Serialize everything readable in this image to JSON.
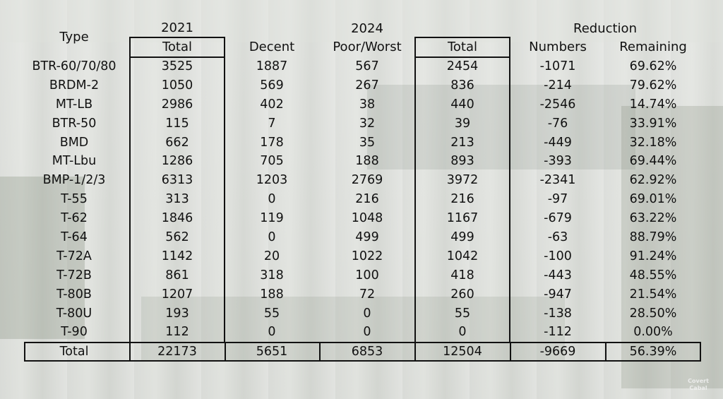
{
  "headers": {
    "type": "Type",
    "year2021": "2021",
    "year2024": "2024",
    "reduction": "Reduction",
    "total2021": "Total",
    "decent": "Decent",
    "poor_worst": "Poor/Worst",
    "total2024": "Total",
    "numbers": "Numbers",
    "remaining": "Remaining"
  },
  "rows": [
    {
      "type": "BTR-60/70/80",
      "total2021": "3525",
      "decent": "1887",
      "poor": "567",
      "total2024": "2454",
      "numbers": "-1071",
      "remaining": "69.62%"
    },
    {
      "type": "BRDM-2",
      "total2021": "1050",
      "decent": "569",
      "poor": "267",
      "total2024": "836",
      "numbers": "-214",
      "remaining": "79.62%"
    },
    {
      "type": "MT-LB",
      "total2021": "2986",
      "decent": "402",
      "poor": "38",
      "total2024": "440",
      "numbers": "-2546",
      "remaining": "14.74%"
    },
    {
      "type": "BTR-50",
      "total2021": "115",
      "decent": "7",
      "poor": "32",
      "total2024": "39",
      "numbers": "-76",
      "remaining": "33.91%"
    },
    {
      "type": "BMD",
      "total2021": "662",
      "decent": "178",
      "poor": "35",
      "total2024": "213",
      "numbers": "-449",
      "remaining": "32.18%"
    },
    {
      "type": "MT-Lbu",
      "total2021": "1286",
      "decent": "705",
      "poor": "188",
      "total2024": "893",
      "numbers": "-393",
      "remaining": "69.44%"
    },
    {
      "type": "BMP-1/2/3",
      "total2021": "6313",
      "decent": "1203",
      "poor": "2769",
      "total2024": "3972",
      "numbers": "-2341",
      "remaining": "62.92%"
    },
    {
      "type": "T-55",
      "total2021": "313",
      "decent": "0",
      "poor": "216",
      "total2024": "216",
      "numbers": "-97",
      "remaining": "69.01%"
    },
    {
      "type": "T-62",
      "total2021": "1846",
      "decent": "119",
      "poor": "1048",
      "total2024": "1167",
      "numbers": "-679",
      "remaining": "63.22%"
    },
    {
      "type": "T-64",
      "total2021": "562",
      "decent": "0",
      "poor": "499",
      "total2024": "499",
      "numbers": "-63",
      "remaining": "88.79%"
    },
    {
      "type": "T-72A",
      "total2021": "1142",
      "decent": "20",
      "poor": "1022",
      "total2024": "1042",
      "numbers": "-100",
      "remaining": "91.24%"
    },
    {
      "type": "T-72B",
      "total2021": "861",
      "decent": "318",
      "poor": "100",
      "total2024": "418",
      "numbers": "-443",
      "remaining": "48.55%"
    },
    {
      "type": "T-80B",
      "total2021": "1207",
      "decent": "188",
      "poor": "72",
      "total2024": "260",
      "numbers": "-947",
      "remaining": "21.54%"
    },
    {
      "type": "T-80U",
      "total2021": "193",
      "decent": "55",
      "poor": "0",
      "total2024": "55",
      "numbers": "-138",
      "remaining": "28.50%"
    },
    {
      "type": "T-90",
      "total2021": "112",
      "decent": "0",
      "poor": "0",
      "total2024": "0",
      "numbers": "-112",
      "remaining": "0.00%"
    }
  ],
  "total_row": {
    "type": "Total",
    "total2021": "22173",
    "decent": "5651",
    "poor": "6853",
    "total2024": "12504",
    "numbers": "-9669",
    "remaining": "56.39%"
  },
  "logo": {
    "line1": "Covert",
    "line2": "Cabal"
  }
}
